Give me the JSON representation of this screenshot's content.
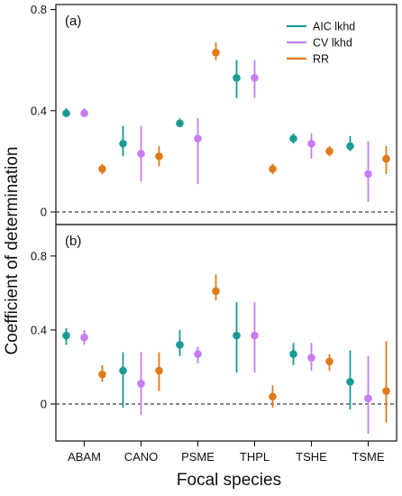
{
  "chart_data": {
    "type": "scatter",
    "ylabel": "Coefficient of determination",
    "xlabel": "Focal species",
    "categories": [
      "ABAM",
      "CANO",
      "PSME",
      "THPL",
      "TSHE",
      "TSME"
    ],
    "series_meta": [
      {
        "name": "AIC lkhd",
        "color": "#1a9a94"
      },
      {
        "name": "CV lkhd",
        "color": "#c77cf0"
      },
      {
        "name": "RR",
        "color": "#e07a1a"
      }
    ],
    "reference_line": 0,
    "panels": [
      {
        "label": "(a)",
        "ylim": [
          -0.05,
          0.82
        ],
        "yticks": [
          0,
          0.4,
          0.8
        ],
        "ytick_labels": [
          "0",
          "0.4",
          "0.8"
        ],
        "series": [
          {
            "name": "AIC lkhd",
            "points": [
              {
                "value": 0.39,
                "low": 0.38,
                "high": 0.41
              },
              {
                "value": 0.27,
                "low": 0.22,
                "high": 0.34
              },
              {
                "value": 0.35,
                "low": 0.34,
                "high": 0.37
              },
              {
                "value": 0.53,
                "low": 0.45,
                "high": 0.6
              },
              {
                "value": 0.29,
                "low": 0.27,
                "high": 0.31
              },
              {
                "value": 0.26,
                "low": 0.24,
                "high": 0.3
              }
            ]
          },
          {
            "name": "CV lkhd",
            "points": [
              {
                "value": 0.39,
                "low": 0.38,
                "high": 0.41
              },
              {
                "value": 0.23,
                "low": 0.12,
                "high": 0.34
              },
              {
                "value": 0.29,
                "low": 0.11,
                "high": 0.37
              },
              {
                "value": 0.53,
                "low": 0.45,
                "high": 0.6
              },
              {
                "value": 0.27,
                "low": 0.21,
                "high": 0.31
              },
              {
                "value": 0.15,
                "low": 0.04,
                "high": 0.28
              }
            ]
          },
          {
            "name": "RR",
            "points": [
              {
                "value": 0.17,
                "low": 0.15,
                "high": 0.19
              },
              {
                "value": 0.22,
                "low": 0.18,
                "high": 0.26
              },
              {
                "value": 0.63,
                "low": 0.6,
                "high": 0.67
              },
              {
                "value": 0.17,
                "low": 0.15,
                "high": 0.19
              },
              {
                "value": 0.24,
                "low": 0.22,
                "high": 0.26
              },
              {
                "value": 0.21,
                "low": 0.15,
                "high": 0.26
              }
            ]
          }
        ]
      },
      {
        "label": "(b)",
        "ylim": [
          -0.2,
          0.97
        ],
        "yticks": [
          0,
          0.4,
          0.8
        ],
        "ytick_labels": [
          "0",
          "0.4",
          "0.8"
        ],
        "series": [
          {
            "name": "AIC lkhd",
            "points": [
              {
                "value": 0.37,
                "low": 0.32,
                "high": 0.41
              },
              {
                "value": 0.18,
                "low": -0.02,
                "high": 0.28
              },
              {
                "value": 0.32,
                "low": 0.26,
                "high": 0.4
              },
              {
                "value": 0.37,
                "low": 0.17,
                "high": 0.55
              },
              {
                "value": 0.27,
                "low": 0.21,
                "high": 0.33
              },
              {
                "value": 0.12,
                "low": -0.03,
                "high": 0.29
              }
            ]
          },
          {
            "name": "CV lkhd",
            "points": [
              {
                "value": 0.36,
                "low": 0.32,
                "high": 0.4
              },
              {
                "value": 0.11,
                "low": -0.06,
                "high": 0.28
              },
              {
                "value": 0.27,
                "low": 0.22,
                "high": 0.31
              },
              {
                "value": 0.37,
                "low": 0.17,
                "high": 0.55
              },
              {
                "value": 0.25,
                "low": 0.18,
                "high": 0.33
              },
              {
                "value": 0.03,
                "low": -0.16,
                "high": 0.26
              }
            ]
          },
          {
            "name": "RR",
            "points": [
              {
                "value": 0.16,
                "low": 0.12,
                "high": 0.21
              },
              {
                "value": 0.18,
                "low": 0.07,
                "high": 0.28
              },
              {
                "value": 0.61,
                "low": 0.56,
                "high": 0.7
              },
              {
                "value": 0.04,
                "low": -0.02,
                "high": 0.1
              },
              {
                "value": 0.23,
                "low": 0.18,
                "high": 0.27
              },
              {
                "value": 0.07,
                "low": -0.1,
                "high": 0.34
              }
            ]
          }
        ]
      }
    ]
  }
}
